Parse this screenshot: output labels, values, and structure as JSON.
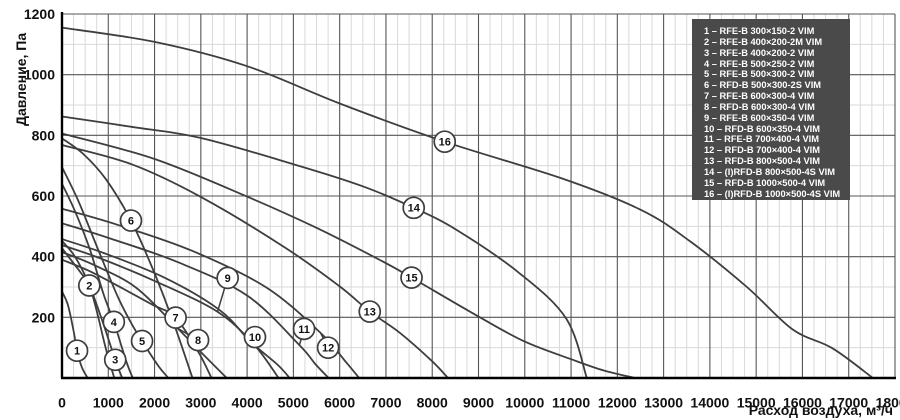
{
  "axes": {
    "y_title": "Давление, Па",
    "x_title": "Расход воздуха, м³/ч",
    "x_tick_labels": [
      "0",
      "1000",
      "2000",
      "3000",
      "4000",
      "5000",
      "6000",
      "7000",
      "8000",
      "9000",
      "10000",
      "11000",
      "12000",
      "13000",
      "14000",
      "15000",
      "16000",
      "17000",
      "18000"
    ],
    "y_tick_labels": [
      "200",
      "400",
      "600",
      "800",
      "1000",
      "1200"
    ]
  },
  "legend": {
    "background_color": "#4a4a4a",
    "text_color": "#ffffff",
    "separator": " – "
  },
  "colors": {
    "curve": "#3e3e3e",
    "grid_major": "#565656",
    "grid_minor": "#d9d9d9",
    "axis": "#000000",
    "label_circle_fill": "#ffffff"
  },
  "chart_data": {
    "type": "line",
    "title": "",
    "xlabel": "Расход воздуха, м³/ч",
    "ylabel": "Давление, Па",
    "xlim": [
      0,
      18000
    ],
    "ylim": [
      0,
      1200
    ],
    "x_major_step": 1000,
    "x_minor_step": 250,
    "y_major_step": 200,
    "y_minor_step": 100,
    "grid": "major+minor",
    "legend_position": "top-right",
    "series": [
      {
        "label": "1",
        "name": "RFE-B 300×150-2 VIM",
        "label_at": [
          325,
          90
        ],
        "points": [
          [
            0,
            285
          ],
          [
            130,
            240
          ],
          [
            250,
            155
          ],
          [
            325,
            90
          ],
          [
            430,
            35
          ],
          [
            555,
            0
          ]
        ]
      },
      {
        "label": "2",
        "name": "RFE-B 400×200-2M VIM",
        "label_at": [
          590,
          305
        ],
        "points": [
          [
            0,
            428
          ],
          [
            180,
            392
          ],
          [
            400,
            348
          ],
          [
            590,
            305
          ],
          [
            760,
            215
          ],
          [
            950,
            95
          ],
          [
            1130,
            0
          ]
        ]
      },
      {
        "label": "3",
        "name": "RFE-B 400×200-2 VIM",
        "label_at": [
          1150,
          60
        ],
        "points": [
          [
            0,
            452
          ],
          [
            280,
            400
          ],
          [
            580,
            310
          ],
          [
            880,
            185
          ],
          [
            1150,
            60
          ],
          [
            1300,
            0
          ]
        ]
      },
      {
        "label": "4",
        "name": "RFE-B 500×250-2 VIM",
        "label_at": [
          1120,
          185
        ],
        "points": [
          [
            0,
            640
          ],
          [
            280,
            550
          ],
          [
            600,
            425
          ],
          [
            900,
            275
          ],
          [
            1120,
            185
          ],
          [
            1400,
            50
          ],
          [
            1530,
            0
          ]
        ]
      },
      {
        "label": "5",
        "name": "RFE-B 500×300-2 VIM",
        "label_at": [
          1730,
          122
        ],
        "points": [
          [
            0,
            695
          ],
          [
            350,
            585
          ],
          [
            750,
            435
          ],
          [
            1200,
            270
          ],
          [
            1500,
            180
          ],
          [
            1730,
            122
          ],
          [
            2080,
            40
          ],
          [
            2300,
            0
          ]
        ]
      },
      {
        "label": "6",
        "name": "RFD-B 500×300-2S VIM",
        "label_at": [
          1490,
          519
        ],
        "points": [
          [
            0,
            790
          ],
          [
            450,
            740
          ],
          [
            950,
            655
          ],
          [
            1490,
            519
          ],
          [
            2000,
            345
          ],
          [
            2450,
            165
          ],
          [
            2820,
            0
          ]
        ]
      },
      {
        "label": "7",
        "name": "RFE-B 600×300-4 VIM",
        "label_at": [
          2455,
          199
        ],
        "points": [
          [
            0,
            390
          ],
          [
            600,
            352
          ],
          [
            1300,
            296
          ],
          [
            1950,
            242
          ],
          [
            2455,
            199
          ],
          [
            2950,
            85
          ],
          [
            3230,
            0
          ]
        ]
      },
      {
        "label": "8",
        "name": "RFD-B 600×300-4 VIM",
        "label_at": [
          2940,
          125
        ],
        "leader_to": [
          2520,
          162
        ],
        "points": [
          [
            0,
            415
          ],
          [
            700,
            372
          ],
          [
            1600,
            298
          ],
          [
            2490,
            165
          ],
          [
            3100,
            70
          ],
          [
            3560,
            0
          ]
        ]
      },
      {
        "label": "9",
        "name": "RFE-B 600×350-4 VIM",
        "label_at": [
          3580,
          330
        ],
        "leader_to": [
          3360,
          218
        ],
        "points": [
          [
            0,
            438
          ],
          [
            800,
            396
          ],
          [
            2000,
            320
          ],
          [
            3355,
            219
          ],
          [
            4150,
            110
          ],
          [
            4680,
            0
          ]
        ]
      },
      {
        "label": "10",
        "name": "RFD-B 600×350-4 VIM",
        "label_at": [
          4170,
          135
        ],
        "leader_to": [
          4080,
          118
        ],
        "points": [
          [
            0,
            458
          ],
          [
            900,
            412
          ],
          [
            2200,
            332
          ],
          [
            3400,
            225
          ],
          [
            4070,
            120
          ],
          [
            4650,
            45
          ],
          [
            4920,
            0
          ]
        ]
      },
      {
        "label": "11",
        "name": "RFE-B 700×400-4 VIM",
        "label_at": [
          5230,
          162
        ],
        "leader_to": [
          5130,
          108
        ],
        "points": [
          [
            0,
            510
          ],
          [
            1000,
            462
          ],
          [
            2500,
            382
          ],
          [
            4000,
            272
          ],
          [
            5120,
            110
          ],
          [
            5480,
            45
          ],
          [
            5760,
            0
          ]
        ]
      },
      {
        "label": "12",
        "name": "RFD-B 700×400-4 VIM",
        "label_at": [
          5750,
          100
        ],
        "leader_to": [
          5590,
          148
        ],
        "points": [
          [
            0,
            558
          ],
          [
            1200,
            505
          ],
          [
            2800,
            420
          ],
          [
            4400,
            300
          ],
          [
            5580,
            150
          ],
          [
            6150,
            50
          ],
          [
            6420,
            0
          ]
        ]
      },
      {
        "label": "13",
        "name": "RFD-B 800×500-4 VIM",
        "label_at": [
          6650,
          219
        ],
        "points": [
          [
            0,
            768
          ],
          [
            1500,
            705
          ],
          [
            3000,
            597
          ],
          [
            4800,
            432
          ],
          [
            6000,
            302
          ],
          [
            6650,
            219
          ],
          [
            7300,
            149
          ],
          [
            8000,
            55
          ],
          [
            8340,
            0
          ]
        ]
      },
      {
        "label": "14",
        "name": "(I)RFD-B 800×500-4S VIM",
        "label_at": [
          7600,
          561
        ],
        "points": [
          [
            0,
            862
          ],
          [
            1500,
            828
          ],
          [
            2980,
            792
          ],
          [
            5000,
            705
          ],
          [
            6500,
            632
          ],
          [
            7600,
            561
          ],
          [
            8530,
            488
          ],
          [
            9890,
            345
          ],
          [
            10900,
            195
          ],
          [
            11340,
            0
          ]
        ]
      },
      {
        "label": "15",
        "name": "RFD-B 1000×500-4 VIM",
        "label_at": [
          7553,
          331
        ],
        "points": [
          [
            0,
            806
          ],
          [
            2000,
            722
          ],
          [
            4000,
            598
          ],
          [
            5500,
            495
          ],
          [
            6870,
            389
          ],
          [
            7553,
            331
          ],
          [
            9030,
            200
          ],
          [
            10000,
            120
          ],
          [
            11000,
            62
          ],
          [
            11700,
            25
          ],
          [
            12380,
            0
          ]
        ]
      },
      {
        "label": "16",
        "name": "(I)RFD-B 1000×500-4S VIM",
        "label_at": [
          8270,
          779
        ],
        "points": [
          [
            0,
            1155
          ],
          [
            2000,
            1108
          ],
          [
            4000,
            1028
          ],
          [
            6000,
            905
          ],
          [
            8270,
            779
          ],
          [
            10800,
            658
          ],
          [
            12500,
            555
          ],
          [
            13560,
            452
          ],
          [
            14800,
            300
          ],
          [
            15790,
            160
          ],
          [
            16650,
            98
          ],
          [
            17520,
            0
          ]
        ]
      }
    ]
  }
}
